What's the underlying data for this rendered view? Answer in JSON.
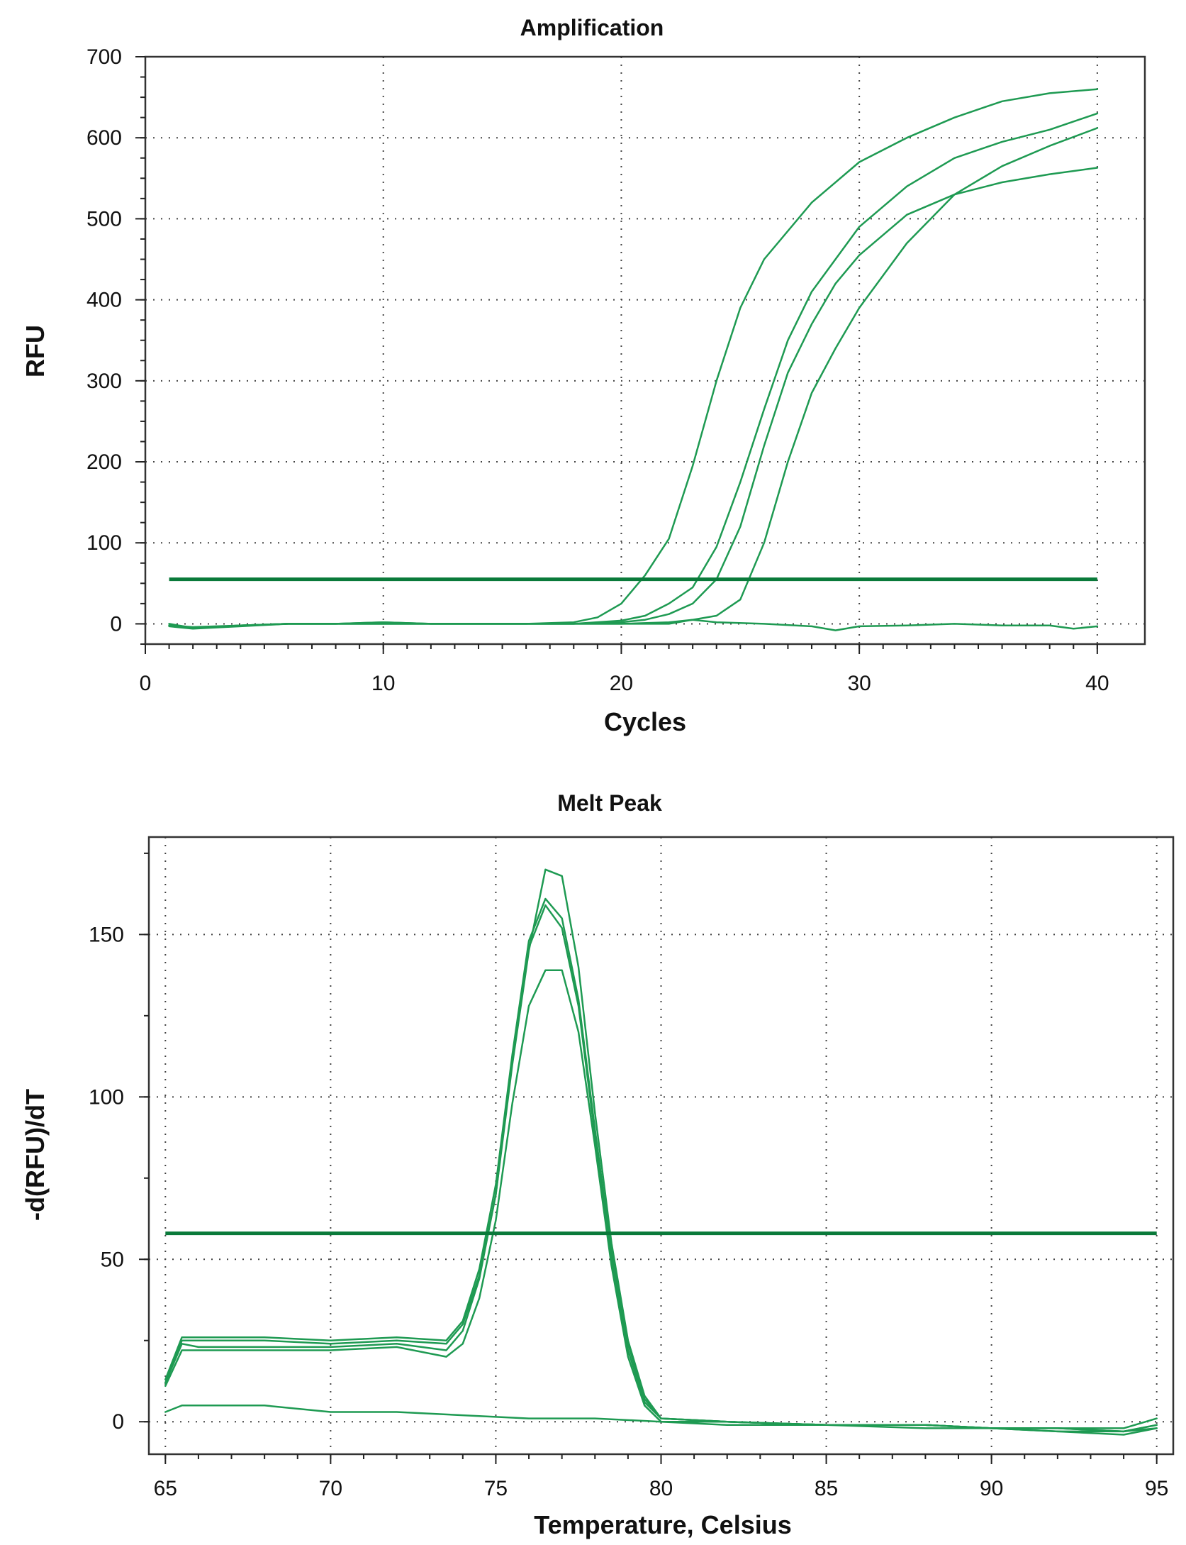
{
  "chart_data": [
    {
      "type": "line",
      "title": "Amplification",
      "xlabel": "Cycles",
      "ylabel": "RFU",
      "xlim": [
        0,
        42
      ],
      "ylim": [
        -25,
        700
      ],
      "xticks": [
        0,
        10,
        20,
        30,
        40
      ],
      "yticks": [
        0,
        100,
        200,
        300,
        400,
        500,
        600,
        700
      ],
      "grid": true,
      "legend": "none",
      "color": "#1e9a52",
      "threshold_color": "#0a7a3a",
      "threshold": 55,
      "series": [
        {
          "x": [
            1,
            2,
            4,
            6,
            8,
            10,
            12,
            14,
            16,
            18,
            19,
            20,
            21,
            22,
            23,
            24,
            25,
            26,
            28,
            30,
            32,
            34,
            36,
            38,
            40
          ],
          "y": [
            0,
            -5,
            -2,
            0,
            0,
            2,
            0,
            0,
            0,
            2,
            8,
            25,
            60,
            105,
            195,
            300,
            390,
            450,
            520,
            570,
            600,
            625,
            645,
            655,
            660
          ]
        },
        {
          "x": [
            1,
            2,
            4,
            6,
            8,
            10,
            12,
            14,
            16,
            18,
            20,
            21,
            22,
            23,
            24,
            25,
            26,
            27,
            28,
            30,
            32,
            34,
            36,
            38,
            40
          ],
          "y": [
            -2,
            -4,
            -2,
            0,
            0,
            0,
            0,
            0,
            0,
            0,
            4,
            10,
            25,
            45,
            95,
            175,
            265,
            350,
            410,
            490,
            540,
            575,
            595,
            610,
            630
          ]
        },
        {
          "x": [
            1,
            2,
            4,
            6,
            8,
            10,
            12,
            14,
            16,
            18,
            20,
            21,
            22,
            23,
            24,
            25,
            26,
            27,
            28,
            29,
            30,
            32,
            34,
            36,
            38,
            40
          ],
          "y": [
            -3,
            -6,
            -3,
            0,
            0,
            0,
            0,
            0,
            0,
            0,
            2,
            5,
            12,
            25,
            55,
            120,
            220,
            310,
            370,
            420,
            455,
            505,
            530,
            545,
            555,
            563
          ]
        },
        {
          "x": [
            1,
            2,
            4,
            6,
            8,
            10,
            12,
            14,
            16,
            18,
            20,
            22,
            23,
            24,
            25,
            26,
            27,
            28,
            29,
            30,
            32,
            34,
            36,
            38,
            40
          ],
          "y": [
            -2,
            -5,
            -2,
            0,
            0,
            0,
            0,
            0,
            0,
            0,
            0,
            0,
            5,
            10,
            30,
            100,
            200,
            285,
            340,
            390,
            470,
            530,
            565,
            590,
            612
          ]
        },
        {
          "x": [
            1,
            2,
            4,
            6,
            8,
            10,
            12,
            14,
            16,
            18,
            20,
            22,
            23,
            24,
            26,
            28,
            29,
            30,
            32,
            34,
            36,
            38,
            39,
            40
          ],
          "y": [
            -2,
            -5,
            -2,
            0,
            0,
            2,
            0,
            0,
            0,
            0,
            0,
            2,
            5,
            2,
            0,
            -3,
            -8,
            -3,
            -2,
            0,
            -2,
            -2,
            -6,
            -3
          ]
        }
      ]
    },
    {
      "type": "line",
      "title": "Melt Peak",
      "xlabel": "Temperature, Celsius",
      "ylabel": "-d(RFU)/dT",
      "xlim": [
        64.5,
        95.5
      ],
      "ylim": [
        -10,
        180
      ],
      "xticks": [
        65,
        70,
        75,
        80,
        85,
        90,
        95
      ],
      "yticks": [
        0,
        50,
        100,
        150
      ],
      "grid": true,
      "legend": "none",
      "color": "#1e9a52",
      "threshold_color": "#0a7a3a",
      "threshold": 58,
      "series": [
        {
          "x": [
            65,
            65.5,
            66,
            68,
            70,
            72,
            73.5,
            74,
            74.5,
            75,
            75.5,
            76,
            76.5,
            77,
            77.5,
            78,
            78.5,
            79,
            79.5,
            80,
            82,
            85,
            88,
            90,
            92,
            94,
            95
          ],
          "y": [
            12,
            25,
            25,
            25,
            24,
            25,
            24,
            30,
            45,
            70,
            110,
            145,
            170,
            168,
            140,
            95,
            55,
            25,
            8,
            1,
            0,
            -1,
            -1,
            -2,
            -3,
            -4,
            -2
          ]
        },
        {
          "x": [
            65,
            65.5,
            66,
            68,
            70,
            72,
            73.5,
            74,
            74.5,
            75,
            75.5,
            76,
            76.5,
            77,
            77.5,
            78,
            78.5,
            79,
            79.5,
            80,
            82,
            85,
            88,
            90,
            92,
            94,
            95
          ],
          "y": [
            13,
            26,
            26,
            26,
            25,
            26,
            25,
            31,
            47,
            73,
            113,
            148,
            161,
            155,
            130,
            90,
            52,
            24,
            7,
            1,
            0,
            -1,
            -1,
            -2,
            -2,
            -3,
            -1
          ]
        },
        {
          "x": [
            65,
            65.5,
            66,
            68,
            70,
            72,
            73.5,
            74,
            74.5,
            75,
            75.5,
            76,
            76.5,
            77,
            77.5,
            78,
            78.5,
            79,
            79.5,
            80,
            82,
            85,
            88,
            90,
            92,
            94,
            95
          ],
          "y": [
            12,
            24,
            23,
            23,
            23,
            24,
            22,
            28,
            44,
            70,
            112,
            146,
            159,
            152,
            128,
            88,
            50,
            22,
            6,
            1,
            0,
            -1,
            -2,
            -2,
            -3,
            -3,
            -1
          ]
        },
        {
          "x": [
            65,
            65.5,
            66,
            68,
            70,
            72,
            73.5,
            74,
            74.5,
            75,
            75.5,
            76,
            76.5,
            77,
            77.5,
            78,
            78.5,
            79,
            79.5,
            80,
            82,
            85,
            88,
            90,
            92,
            94,
            95
          ],
          "y": [
            11,
            22,
            22,
            22,
            22,
            23,
            20,
            24,
            38,
            62,
            98,
            128,
            139,
            139,
            120,
            85,
            48,
            20,
            5,
            0,
            0,
            -1,
            -1,
            -2,
            -2,
            -2,
            1
          ]
        },
        {
          "x": [
            65,
            65.5,
            66,
            68,
            70,
            72,
            74,
            76,
            78,
            80,
            82,
            85,
            88,
            90,
            92,
            94,
            95
          ],
          "y": [
            3,
            5,
            5,
            5,
            3,
            3,
            2,
            1,
            1,
            0,
            -1,
            -1,
            -1,
            -2,
            -2,
            -3,
            -2
          ]
        }
      ]
    }
  ]
}
